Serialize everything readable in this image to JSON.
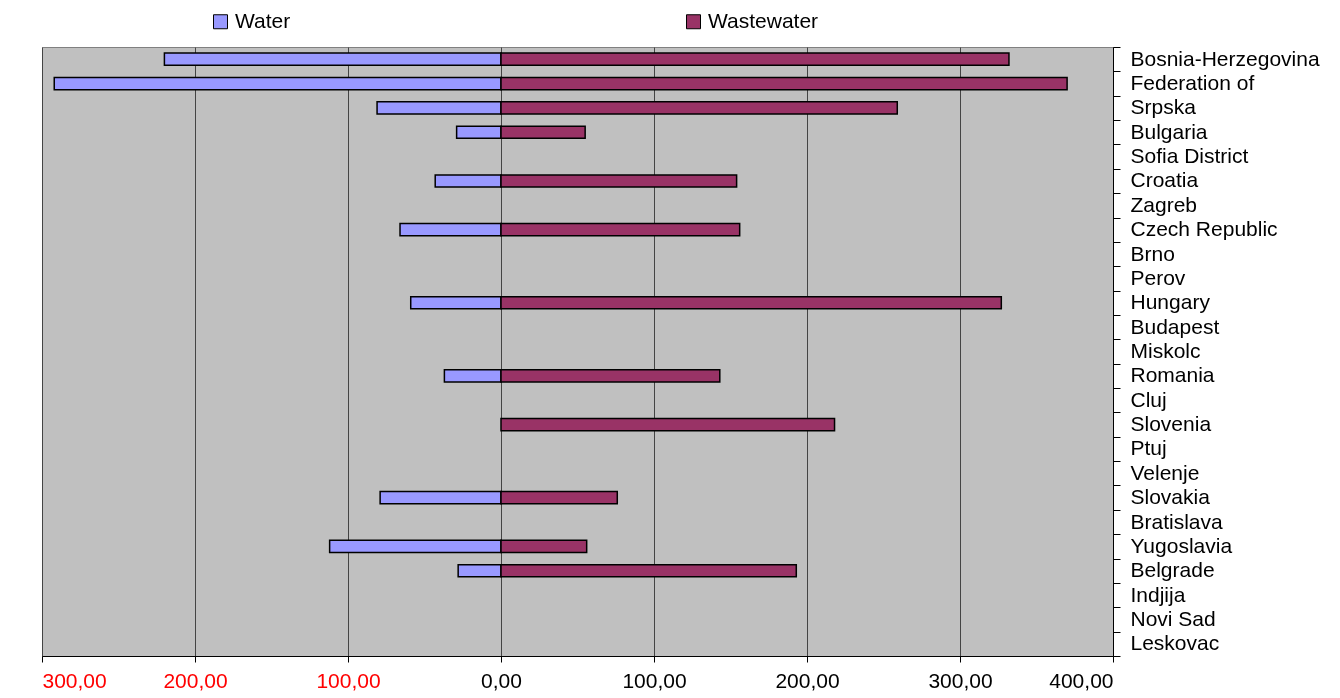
{
  "chart_data": {
    "type": "bar",
    "orientation": "horizontal",
    "stacked": true,
    "categories": [
      "Bosnia-Herzegovina",
      "Federation of",
      "Srpska",
      "Bulgaria",
      "Sofia District",
      "Croatia",
      "Zagreb",
      "Czech Republic",
      "Brno",
      "Perov",
      "Hungary",
      "Budapest",
      "Miskolc",
      "Romania",
      "Cluj",
      "Slovenia",
      "Ptuj",
      "Velenje",
      "Slovakia",
      "Bratislava",
      "Yugoslavia",
      "Belgrade",
      "Indjija",
      "Novi Sad",
      "Leskovac"
    ],
    "series": [
      {
        "name": "Water",
        "color": "#9999ff",
        "values": [
          -220,
          -292,
          -81,
          -29,
          null,
          -43,
          null,
          -66,
          null,
          null,
          -59,
          null,
          null,
          -37,
          null,
          null,
          null,
          null,
          -79,
          null,
          -112,
          -28,
          null,
          null,
          null
        ]
      },
      {
        "name": "Wastewater",
        "color": "#993366",
        "values": [
          332,
          370,
          259,
          55,
          null,
          154,
          null,
          156,
          null,
          null,
          327,
          null,
          null,
          143,
          null,
          218,
          null,
          null,
          76,
          null,
          56,
          193,
          null,
          null,
          null
        ]
      }
    ],
    "xlim": [
      -300,
      400
    ],
    "xticks": [
      {
        "value": -300,
        "label": "300,00"
      },
      {
        "value": -200,
        "label": "200,00"
      },
      {
        "value": -100,
        "label": "100,00"
      },
      {
        "value": 0,
        "label": "0,00"
      },
      {
        "value": 100,
        "label": "100,00"
      },
      {
        "value": 200,
        "label": "200,00"
      },
      {
        "value": 300,
        "label": "300,00"
      },
      {
        "value": 400,
        "label": "400,00"
      }
    ],
    "grid": "x",
    "legend": "top"
  }
}
